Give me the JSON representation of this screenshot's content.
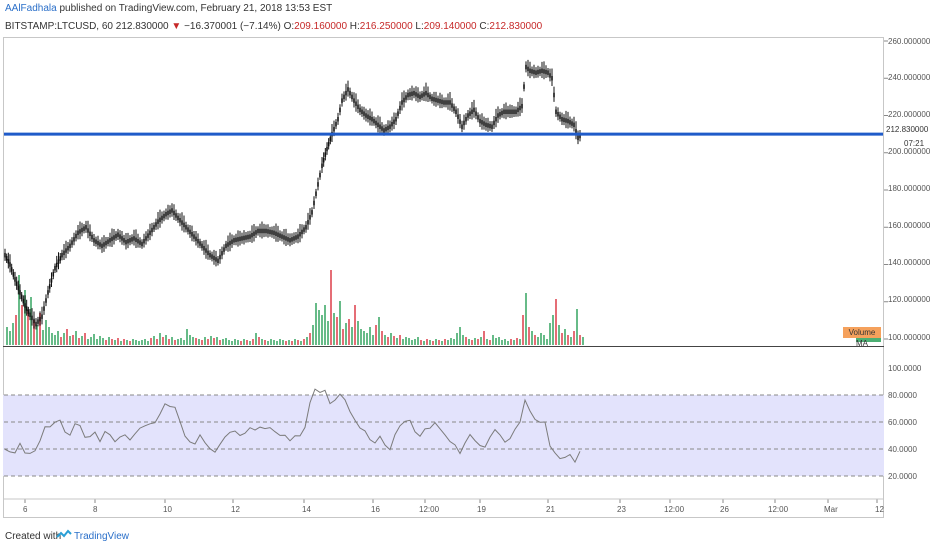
{
  "header": {
    "author": "AAlFadhala",
    "published_text": "published on TradingView.com, February 21, 2018 13:53 EST"
  },
  "symbol_line": {
    "symbol": "BITSTAMP:LTCUSD, 60",
    "last": "212.830000",
    "change_arrow": "▼",
    "change": "−16.370001 (−7.14%)",
    "open_label": "O:",
    "open": "209.160000",
    "high_label": "H:",
    "high": "216.250000",
    "low_label": "L:",
    "low": "209.140000",
    "close_label": "C:",
    "close": "212.830000"
  },
  "price_axis": {
    "ticks": [
      "260.000000",
      "240.000000",
      "220.000000",
      "200.000000",
      "180.000000",
      "160.000000",
      "140.000000",
      "120.000000",
      "100.000000"
    ],
    "current_price": "212.830000",
    "countdown": "07:21"
  },
  "volume": {
    "ma_label": "Volume MA"
  },
  "rsi_axis": {
    "ticks": [
      "100.0000",
      "80.0000",
      "60.0000",
      "40.0000",
      "20.0000"
    ]
  },
  "time_axis": {
    "ticks": [
      "6",
      "8",
      "10",
      "12",
      "14",
      "16",
      "12:00",
      "19",
      "21",
      "23",
      "12:00",
      "26",
      "12:00",
      "Mar",
      "12"
    ]
  },
  "footer": {
    "created_with": "Created with",
    "brand": "TradingView"
  },
  "colors": {
    "up": "#4caf73",
    "down": "#e0545e",
    "horizontal_line": "#1f5bc9",
    "rsi_band": "#e3e3fc",
    "rsi_line": "#7b7b7b",
    "volume_ma_tag": "#f5a15c"
  },
  "chart_data": {
    "type": "candlestick",
    "horizontal_level": 210,
    "price_ylim": [
      100,
      262
    ],
    "rsi_ylim": [
      0,
      100
    ],
    "rsi_levels": [
      80,
      60,
      40,
      20
    ],
    "price_path": [
      [
        5,
        145
      ],
      [
        10,
        140
      ],
      [
        15,
        132
      ],
      [
        20,
        125
      ],
      [
        25,
        118
      ],
      [
        30,
        113
      ],
      [
        36,
        108
      ],
      [
        42,
        112
      ],
      [
        48,
        125
      ],
      [
        55,
        138
      ],
      [
        62,
        145
      ],
      [
        70,
        150
      ],
      [
        78,
        157
      ],
      [
        86,
        160
      ],
      [
        94,
        153
      ],
      [
        102,
        150
      ],
      [
        110,
        153
      ],
      [
        118,
        156
      ],
      [
        126,
        152
      ],
      [
        134,
        154
      ],
      [
        142,
        151
      ],
      [
        150,
        157
      ],
      [
        158,
        163
      ],
      [
        166,
        167
      ],
      [
        172,
        169
      ],
      [
        178,
        165
      ],
      [
        186,
        160
      ],
      [
        194,
        155
      ],
      [
        202,
        150
      ],
      [
        210,
        145
      ],
      [
        218,
        142
      ],
      [
        226,
        150
      ],
      [
        234,
        153
      ],
      [
        242,
        154
      ],
      [
        250,
        155
      ],
      [
        258,
        158
      ],
      [
        266,
        158
      ],
      [
        274,
        157
      ],
      [
        282,
        155
      ],
      [
        290,
        153
      ],
      [
        298,
        155
      ],
      [
        306,
        160
      ],
      [
        312,
        168
      ],
      [
        318,
        183
      ],
      [
        322,
        193
      ],
      [
        327,
        202
      ],
      [
        332,
        210
      ],
      [
        338,
        218
      ],
      [
        342,
        228
      ],
      [
        348,
        234
      ],
      [
        354,
        228
      ],
      [
        360,
        223
      ],
      [
        366,
        220
      ],
      [
        372,
        218
      ],
      [
        378,
        215
      ],
      [
        384,
        212
      ],
      [
        390,
        214
      ],
      [
        396,
        218
      ],
      [
        402,
        227
      ],
      [
        408,
        231
      ],
      [
        414,
        232
      ],
      [
        420,
        230
      ],
      [
        426,
        232
      ],
      [
        432,
        229
      ],
      [
        438,
        228
      ],
      [
        444,
        227
      ],
      [
        450,
        227
      ],
      [
        456,
        222
      ],
      [
        462,
        214
      ],
      [
        468,
        220
      ],
      [
        474,
        223
      ],
      [
        480,
        217
      ],
      [
        486,
        215
      ],
      [
        492,
        214
      ],
      [
        498,
        220
      ],
      [
        504,
        222
      ],
      [
        510,
        222
      ],
      [
        516,
        222
      ],
      [
        522,
        225
      ],
      [
        526,
        246
      ],
      [
        530,
        244
      ],
      [
        536,
        243
      ],
      [
        542,
        244
      ],
      [
        548,
        243
      ],
      [
        552,
        240
      ],
      [
        556,
        222
      ],
      [
        562,
        218
      ],
      [
        568,
        217
      ],
      [
        574,
        215
      ],
      [
        578,
        208
      ],
      [
        582,
        210
      ]
    ],
    "rsi_path": [
      [
        5,
        42
      ],
      [
        10,
        40
      ],
      [
        15,
        37
      ],
      [
        20,
        42
      ],
      [
        25,
        35
      ],
      [
        30,
        37
      ],
      [
        35,
        41
      ],
      [
        40,
        48
      ],
      [
        45,
        56
      ],
      [
        50,
        54
      ],
      [
        55,
        58
      ],
      [
        60,
        62
      ],
      [
        65,
        55
      ],
      [
        70,
        52
      ],
      [
        75,
        58
      ],
      [
        80,
        55
      ],
      [
        85,
        47
      ],
      [
        90,
        50
      ],
      [
        95,
        55
      ],
      [
        100,
        47
      ],
      [
        105,
        52
      ],
      [
        110,
        48
      ],
      [
        115,
        44
      ],
      [
        120,
        50
      ],
      [
        125,
        53
      ],
      [
        130,
        48
      ],
      [
        135,
        50
      ],
      [
        140,
        53
      ],
      [
        145,
        56
      ],
      [
        150,
        60
      ],
      [
        155,
        62
      ],
      [
        160,
        67
      ],
      [
        165,
        72
      ],
      [
        170,
        69
      ],
      [
        175,
        70
      ],
      [
        180,
        62
      ],
      [
        185,
        52
      ],
      [
        190,
        46
      ],
      [
        195,
        42
      ],
      [
        200,
        48
      ],
      [
        205,
        44
      ],
      [
        210,
        42
      ],
      [
        215,
        40
      ],
      [
        220,
        44
      ],
      [
        225,
        47
      ],
      [
        230,
        50
      ],
      [
        235,
        53
      ],
      [
        240,
        52
      ],
      [
        245,
        54
      ],
      [
        250,
        56
      ],
      [
        255,
        52
      ],
      [
        260,
        54
      ],
      [
        265,
        55
      ],
      [
        270,
        58
      ],
      [
        275,
        55
      ],
      [
        280,
        50
      ],
      [
        285,
        48
      ],
      [
        290,
        44
      ],
      [
        295,
        50
      ],
      [
        300,
        52
      ],
      [
        305,
        58
      ],
      [
        310,
        74
      ],
      [
        315,
        82
      ],
      [
        320,
        80
      ],
      [
        325,
        84
      ],
      [
        330,
        76
      ],
      [
        335,
        78
      ],
      [
        340,
        80
      ],
      [
        345,
        74
      ],
      [
        350,
        66
      ],
      [
        355,
        62
      ],
      [
        360,
        58
      ],
      [
        365,
        55
      ],
      [
        370,
        46
      ],
      [
        375,
        42
      ],
      [
        380,
        48
      ],
      [
        385,
        44
      ],
      [
        390,
        42
      ],
      [
        395,
        52
      ],
      [
        400,
        56
      ],
      [
        405,
        58
      ],
      [
        410,
        60
      ],
      [
        415,
        54
      ],
      [
        420,
        52
      ],
      [
        425,
        56
      ],
      [
        430,
        54
      ],
      [
        435,
        57
      ],
      [
        440,
        54
      ],
      [
        445,
        52
      ],
      [
        450,
        48
      ],
      [
        455,
        44
      ],
      [
        460,
        35
      ],
      [
        465,
        42
      ],
      [
        470,
        50
      ],
      [
        475,
        48
      ],
      [
        480,
        45
      ],
      [
        485,
        42
      ],
      [
        490,
        47
      ],
      [
        495,
        52
      ],
      [
        500,
        50
      ],
      [
        505,
        47
      ],
      [
        510,
        50
      ],
      [
        515,
        55
      ],
      [
        520,
        58
      ],
      [
        525,
        74
      ],
      [
        530,
        68
      ],
      [
        535,
        64
      ],
      [
        540,
        62
      ],
      [
        545,
        60
      ],
      [
        550,
        40
      ],
      [
        555,
        35
      ],
      [
        560,
        33
      ],
      [
        565,
        36
      ],
      [
        570,
        38
      ],
      [
        575,
        30
      ],
      [
        580,
        36
      ]
    ],
    "volume_bars": [
      [
        6,
        18
      ],
      [
        9,
        14
      ],
      [
        12,
        22
      ],
      [
        15,
        30
      ],
      [
        18,
        70
      ],
      [
        21,
        40
      ],
      [
        24,
        55
      ],
      [
        27,
        35
      ],
      [
        30,
        48
      ],
      [
        33,
        25
      ],
      [
        36,
        20
      ],
      [
        39,
        32
      ],
      [
        42,
        15
      ],
      [
        45,
        25
      ],
      [
        48,
        18
      ],
      [
        51,
        12
      ],
      [
        54,
        10
      ],
      [
        57,
        14
      ],
      [
        60,
        8
      ],
      [
        63,
        12
      ],
      [
        66,
        16
      ],
      [
        69,
        9
      ],
      [
        72,
        10
      ],
      [
        75,
        14
      ],
      [
        78,
        7
      ],
      [
        81,
        9
      ],
      [
        84,
        12
      ],
      [
        87,
        6
      ],
      [
        90,
        8
      ],
      [
        93,
        11
      ],
      [
        96,
        6
      ],
      [
        99,
        9
      ],
      [
        102,
        7
      ],
      [
        105,
        5
      ],
      [
        108,
        8
      ],
      [
        111,
        6
      ],
      [
        114,
        5
      ],
      [
        117,
        7
      ],
      [
        120,
        4
      ],
      [
        123,
        6
      ],
      [
        126,
        5
      ],
      [
        129,
        4
      ],
      [
        132,
        6
      ],
      [
        135,
        5
      ],
      [
        138,
        4
      ],
      [
        141,
        5
      ],
      [
        144,
        6
      ],
      [
        147,
        4
      ],
      [
        150,
        7
      ],
      [
        153,
        9
      ],
      [
        156,
        6
      ],
      [
        159,
        12
      ],
      [
        162,
        8
      ],
      [
        165,
        10
      ],
      [
        168,
        6
      ],
      [
        171,
        8
      ],
      [
        174,
        5
      ],
      [
        177,
        6
      ],
      [
        180,
        7
      ],
      [
        183,
        5
      ],
      [
        186,
        16
      ],
      [
        189,
        10
      ],
      [
        192,
        8
      ],
      [
        195,
        7
      ],
      [
        198,
        6
      ],
      [
        201,
        5
      ],
      [
        204,
        8
      ],
      [
        207,
        6
      ],
      [
        210,
        9
      ],
      [
        213,
        7
      ],
      [
        216,
        8
      ],
      [
        219,
        5
      ],
      [
        222,
        6
      ],
      [
        225,
        7
      ],
      [
        228,
        5
      ],
      [
        231,
        4
      ],
      [
        234,
        6
      ],
      [
        237,
        5
      ],
      [
        240,
        4
      ],
      [
        243,
        6
      ],
      [
        246,
        5
      ],
      [
        249,
        4
      ],
      [
        252,
        6
      ],
      [
        255,
        12
      ],
      [
        258,
        8
      ],
      [
        261,
        6
      ],
      [
        264,
        5
      ],
      [
        267,
        4
      ],
      [
        270,
        6
      ],
      [
        273,
        5
      ],
      [
        276,
        4
      ],
      [
        279,
        6
      ],
      [
        282,
        5
      ],
      [
        285,
        4
      ],
      [
        288,
        5
      ],
      [
        291,
        4
      ],
      [
        294,
        6
      ],
      [
        297,
        5
      ],
      [
        300,
        4
      ],
      [
        303,
        6
      ],
      [
        306,
        8
      ],
      [
        309,
        12
      ],
      [
        312,
        20
      ],
      [
        315,
        42
      ],
      [
        318,
        35
      ],
      [
        321,
        30
      ],
      [
        324,
        40
      ],
      [
        327,
        24
      ],
      [
        330,
        75
      ],
      [
        333,
        32
      ],
      [
        336,
        28
      ],
      [
        339,
        44
      ],
      [
        342,
        16
      ],
      [
        345,
        22
      ],
      [
        348,
        26
      ],
      [
        351,
        18
      ],
      [
        354,
        40
      ],
      [
        357,
        24
      ],
      [
        360,
        16
      ],
      [
        363,
        14
      ],
      [
        366,
        12
      ],
      [
        369,
        18
      ],
      [
        372,
        10
      ],
      [
        375,
        20
      ],
      [
        378,
        28
      ],
      [
        381,
        14
      ],
      [
        384,
        10
      ],
      [
        387,
        8
      ],
      [
        390,
        12
      ],
      [
        393,
        9
      ],
      [
        396,
        7
      ],
      [
        399,
        10
      ],
      [
        402,
        6
      ],
      [
        405,
        8
      ],
      [
        408,
        7
      ],
      [
        411,
        5
      ],
      [
        414,
        6
      ],
      [
        417,
        8
      ],
      [
        420,
        5
      ],
      [
        423,
        4
      ],
      [
        426,
        6
      ],
      [
        429,
        5
      ],
      [
        432,
        4
      ],
      [
        435,
        6
      ],
      [
        438,
        5
      ],
      [
        441,
        4
      ],
      [
        444,
        6
      ],
      [
        447,
        5
      ],
      [
        450,
        7
      ],
      [
        453,
        6
      ],
      [
        456,
        12
      ],
      [
        459,
        18
      ],
      [
        462,
        10
      ],
      [
        465,
        8
      ],
      [
        468,
        6
      ],
      [
        471,
        5
      ],
      [
        474,
        7
      ],
      [
        477,
        6
      ],
      [
        480,
        8
      ],
      [
        483,
        14
      ],
      [
        486,
        6
      ],
      [
        489,
        5
      ],
      [
        492,
        10
      ],
      [
        495,
        7
      ],
      [
        498,
        8
      ],
      [
        501,
        5
      ],
      [
        504,
        6
      ],
      [
        507,
        4
      ],
      [
        510,
        6
      ],
      [
        513,
        5
      ],
      [
        516,
        7
      ],
      [
        519,
        6
      ],
      [
        522,
        30
      ],
      [
        525,
        52
      ],
      [
        528,
        18
      ],
      [
        531,
        14
      ],
      [
        534,
        10
      ],
      [
        537,
        8
      ],
      [
        540,
        12
      ],
      [
        543,
        10
      ],
      [
        546,
        6
      ],
      [
        549,
        22
      ],
      [
        552,
        30
      ],
      [
        555,
        46
      ],
      [
        558,
        20
      ],
      [
        561,
        12
      ],
      [
        564,
        16
      ],
      [
        567,
        10
      ],
      [
        570,
        8
      ],
      [
        573,
        14
      ],
      [
        576,
        36
      ],
      [
        579,
        10
      ],
      [
        582,
        8
      ]
    ]
  }
}
